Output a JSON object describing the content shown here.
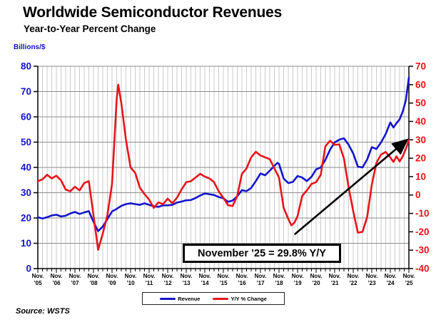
{
  "title": "Worldwide Semiconductor Revenues",
  "subtitle": "Year-to-Year Percent Change",
  "source": "Source: WSTS",
  "annotation": {
    "text": "November ’25 = 29.8% Y/Y"
  },
  "left_axis": {
    "title": "Billions/$",
    "tick_labels": [
      0,
      10,
      20,
      30,
      40,
      50,
      60,
      70,
      80
    ],
    "color": "#1414CC"
  },
  "right_axis": {
    "tick_labels": [
      -40,
      -30,
      -20,
      -10,
      0,
      10,
      20,
      30,
      40,
      50,
      60,
      70
    ],
    "color": "#E8131B"
  },
  "x_axis": {
    "month_label": "Nov.",
    "years": [
      "’05",
      "’06",
      "’07",
      "’08",
      "’09",
      "’10",
      "’11",
      "’12",
      "’13",
      "’14",
      "’15",
      "’16",
      "’17",
      "’18",
      "’19",
      "’20",
      "’21",
      "’22",
      "’23",
      "’24",
      "’25"
    ]
  },
  "legend": {
    "items": [
      {
        "label": "Revenue",
        "color": "#1414CC"
      },
      {
        "label": "Y/Y % Change",
        "color": "#E8131B"
      }
    ]
  },
  "arrow": {
    "from_month": 166,
    "from_left_value": 13.5,
    "to_month": 238,
    "to_left_value": 50.5,
    "color": "#000000"
  },
  "chart_data": {
    "type": "line",
    "title": "Worldwide Semiconductor Revenues",
    "subtitle": "Year-to-Year Percent Change",
    "x_unit": "months since Nov 2005 (0 = Nov '05, 240 = Nov '25, gridlines quarterly)",
    "x_range": [
      0,
      240
    ],
    "left_ylabel": "Billions/$",
    "left_ylim": [
      0,
      80
    ],
    "right_ylabel": "Y/Y % Change",
    "right_ylim": [
      -40,
      70
    ],
    "grid": true,
    "legend_position": "bottom",
    "annotation": "November '25 = 29.8% Y/Y",
    "series": [
      {
        "name": "Revenue",
        "axis": "left",
        "color": "#1414CC",
        "points": [
          [
            0,
            20.3
          ],
          [
            3,
            19.8
          ],
          [
            6,
            20.3
          ],
          [
            9,
            21.0
          ],
          [
            12,
            21.3
          ],
          [
            15,
            20.6
          ],
          [
            18,
            20.9
          ],
          [
            21,
            21.8
          ],
          [
            24,
            22.4
          ],
          [
            27,
            21.6
          ],
          [
            30,
            22.2
          ],
          [
            33,
            22.7
          ],
          [
            36,
            18.5
          ],
          [
            39,
            14.8
          ],
          [
            42,
            16.6
          ],
          [
            45,
            19.6
          ],
          [
            48,
            22.6
          ],
          [
            51,
            23.6
          ],
          [
            54,
            24.8
          ],
          [
            57,
            25.5
          ],
          [
            60,
            25.8
          ],
          [
            63,
            25.5
          ],
          [
            66,
            25.2
          ],
          [
            69,
            25.8
          ],
          [
            72,
            25.2
          ],
          [
            75,
            24.6
          ],
          [
            78,
            24.4
          ],
          [
            81,
            25.0
          ],
          [
            84,
            25.0
          ],
          [
            87,
            25.2
          ],
          [
            90,
            26.1
          ],
          [
            93,
            26.5
          ],
          [
            96,
            27.0
          ],
          [
            99,
            27.1
          ],
          [
            102,
            27.9
          ],
          [
            105,
            28.9
          ],
          [
            108,
            29.7
          ],
          [
            111,
            29.4
          ],
          [
            114,
            29.1
          ],
          [
            117,
            28.3
          ],
          [
            120,
            27.8
          ],
          [
            123,
            26.4
          ],
          [
            126,
            26.9
          ],
          [
            129,
            28.6
          ],
          [
            132,
            31.0
          ],
          [
            135,
            30.6
          ],
          [
            138,
            31.9
          ],
          [
            141,
            34.6
          ],
          [
            144,
            37.6
          ],
          [
            147,
            36.9
          ],
          [
            150,
            38.7
          ],
          [
            153,
            40.6
          ],
          [
            155,
            41.8
          ],
          [
            156,
            41.4
          ],
          [
            159,
            35.6
          ],
          [
            162,
            33.8
          ],
          [
            165,
            34.3
          ],
          [
            168,
            36.6
          ],
          [
            171,
            36.0
          ],
          [
            174,
            34.6
          ],
          [
            177,
            36.3
          ],
          [
            180,
            39.2
          ],
          [
            183,
            40.0
          ],
          [
            186,
            43.0
          ],
          [
            189,
            47.0
          ],
          [
            192,
            49.9
          ],
          [
            195,
            51.0
          ],
          [
            198,
            51.5
          ],
          [
            201,
            49.0
          ],
          [
            204,
            45.5
          ],
          [
            207,
            40.3
          ],
          [
            210,
            40.0
          ],
          [
            213,
            43.1
          ],
          [
            216,
            48.0
          ],
          [
            219,
            47.3
          ],
          [
            222,
            49.9
          ],
          [
            225,
            53.2
          ],
          [
            228,
            57.8
          ],
          [
            230,
            55.8
          ],
          [
            232,
            57.5
          ],
          [
            234,
            59.0
          ],
          [
            236,
            62.0
          ],
          [
            238,
            66.5
          ],
          [
            240,
            75.5
          ]
        ]
      },
      {
        "name": "Y/Y % Change",
        "axis": "right",
        "color": "#E8131B",
        "points": [
          [
            0,
            7.5
          ],
          [
            3,
            8.5
          ],
          [
            6,
            11.0
          ],
          [
            9,
            9.0
          ],
          [
            12,
            10.5
          ],
          [
            15,
            8.0
          ],
          [
            18,
            3.0
          ],
          [
            21,
            2.0
          ],
          [
            24,
            4.5
          ],
          [
            27,
            2.5
          ],
          [
            30,
            6.5
          ],
          [
            33,
            7.5
          ],
          [
            36,
            -11.0
          ],
          [
            39,
            -29.8
          ],
          [
            42,
            -21.0
          ],
          [
            45,
            -11.0
          ],
          [
            48,
            6.0
          ],
          [
            51,
            52.0
          ],
          [
            52,
            60.0
          ],
          [
            54,
            50.0
          ],
          [
            57,
            30.0
          ],
          [
            60,
            15.0
          ],
          [
            63,
            12.0
          ],
          [
            66,
            4.0
          ],
          [
            69,
            0.5
          ],
          [
            72,
            -2.5
          ],
          [
            75,
            -7.0
          ],
          [
            78,
            -4.0
          ],
          [
            81,
            -5.0
          ],
          [
            84,
            -2.0
          ],
          [
            87,
            -4.5
          ],
          [
            90,
            -1.5
          ],
          [
            93,
            3.0
          ],
          [
            96,
            7.0
          ],
          [
            99,
            7.5
          ],
          [
            102,
            9.5
          ],
          [
            105,
            11.5
          ],
          [
            108,
            10.0
          ],
          [
            111,
            9.0
          ],
          [
            114,
            7.0
          ],
          [
            117,
            2.0
          ],
          [
            120,
            -1.5
          ],
          [
            123,
            -5.5
          ],
          [
            126,
            -6.0
          ],
          [
            129,
            -0.5
          ],
          [
            132,
            11.5
          ],
          [
            135,
            14.5
          ],
          [
            138,
            20.5
          ],
          [
            141,
            23.5
          ],
          [
            144,
            21.5
          ],
          [
            147,
            20.5
          ],
          [
            150,
            19.5
          ],
          [
            153,
            14.5
          ],
          [
            156,
            9.5
          ],
          [
            159,
            -7.0
          ],
          [
            162,
            -13.0
          ],
          [
            164,
            -16.5
          ],
          [
            166,
            -15.0
          ],
          [
            168,
            -11.5
          ],
          [
            171,
            -0.5
          ],
          [
            174,
            2.5
          ],
          [
            177,
            6.0
          ],
          [
            180,
            7.0
          ],
          [
            183,
            11.0
          ],
          [
            186,
            26.5
          ],
          [
            189,
            29.5
          ],
          [
            192,
            27.3
          ],
          [
            195,
            27.5
          ],
          [
            198,
            19.8
          ],
          [
            201,
            4.3
          ],
          [
            204,
            -8.8
          ],
          [
            207,
            -20.5
          ],
          [
            210,
            -20.0
          ],
          [
            213,
            -12.0
          ],
          [
            216,
            5.5
          ],
          [
            219,
            17.5
          ],
          [
            222,
            22.0
          ],
          [
            225,
            23.4
          ],
          [
            228,
            20.4
          ],
          [
            230,
            18.0
          ],
          [
            232,
            21.0
          ],
          [
            234,
            18.2
          ],
          [
            236,
            21.0
          ],
          [
            238,
            25.0
          ],
          [
            240,
            29.8
          ]
        ]
      }
    ]
  }
}
